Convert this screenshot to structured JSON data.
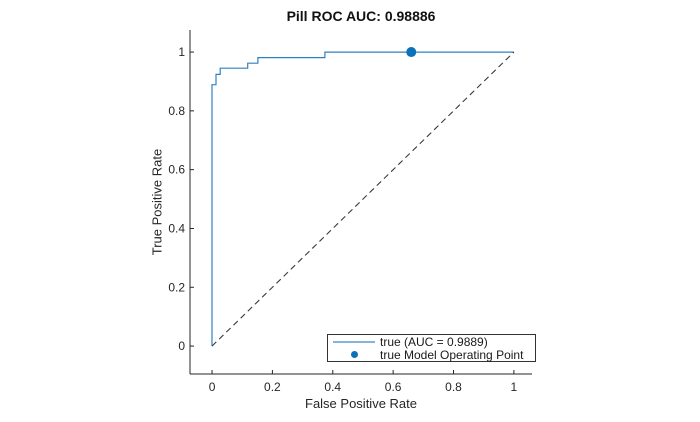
{
  "figure": {
    "background": "#ffffff"
  },
  "colors": {
    "roc_curve": "#3181bf",
    "operating_point": "#0b72b9",
    "diagonal": "#3a3a3a",
    "axis": "#262626",
    "tick_label": "#262626",
    "legend_border": "#333333",
    "legend_line_sample": "#85b4da"
  },
  "chart_data": {
    "type": "line",
    "title": "Pill ROC AUC: 0.98886",
    "xlabel": "False Positive Rate",
    "ylabel": "True Positive Rate",
    "xlim": [
      -0.073,
      1.06
    ],
    "ylim": [
      -0.095,
      1.075
    ],
    "grid": false,
    "x_tick_values": [
      0,
      0.2,
      0.4,
      0.6,
      0.8,
      1
    ],
    "x_tick_labels": [
      "0",
      "0.2",
      "0.4",
      "0.6",
      "0.8",
      "1"
    ],
    "y_tick_values": [
      0,
      0.2,
      0.4,
      0.6,
      0.8,
      1
    ],
    "y_tick_labels": [
      "0",
      "0.2",
      "0.4",
      "0.6",
      "0.8",
      "1"
    ],
    "series": [
      {
        "name": "true (AUC = 0.9889)",
        "type": "step",
        "color": "#3181bf",
        "points": [
          [
            0,
            0
          ],
          [
            0,
            0.889
          ],
          [
            0.013,
            0.889
          ],
          [
            0.013,
            0.924
          ],
          [
            0.027,
            0.924
          ],
          [
            0.027,
            0.945
          ],
          [
            0.118,
            0.945
          ],
          [
            0.118,
            0.962
          ],
          [
            0.152,
            0.962
          ],
          [
            0.152,
            0.981
          ],
          [
            0.374,
            0.981
          ],
          [
            0.374,
            1
          ],
          [
            1,
            1
          ]
        ]
      },
      {
        "name": "true Model Operating Point",
        "type": "scatter",
        "color": "#0b72b9",
        "marker_radius": 5,
        "points": [
          [
            0.66,
            1
          ]
        ]
      },
      {
        "name": "random classifier diagonal",
        "type": "line",
        "style": "dashed",
        "color": "#3a3a3a",
        "points": [
          [
            0,
            0
          ],
          [
            1,
            1
          ]
        ]
      }
    ],
    "legend": {
      "position": "southeast",
      "entries": [
        {
          "marker": "line",
          "label": "true (AUC = 0.9889)"
        },
        {
          "marker": "dot",
          "label": "true Model Operating Point"
        }
      ]
    }
  }
}
